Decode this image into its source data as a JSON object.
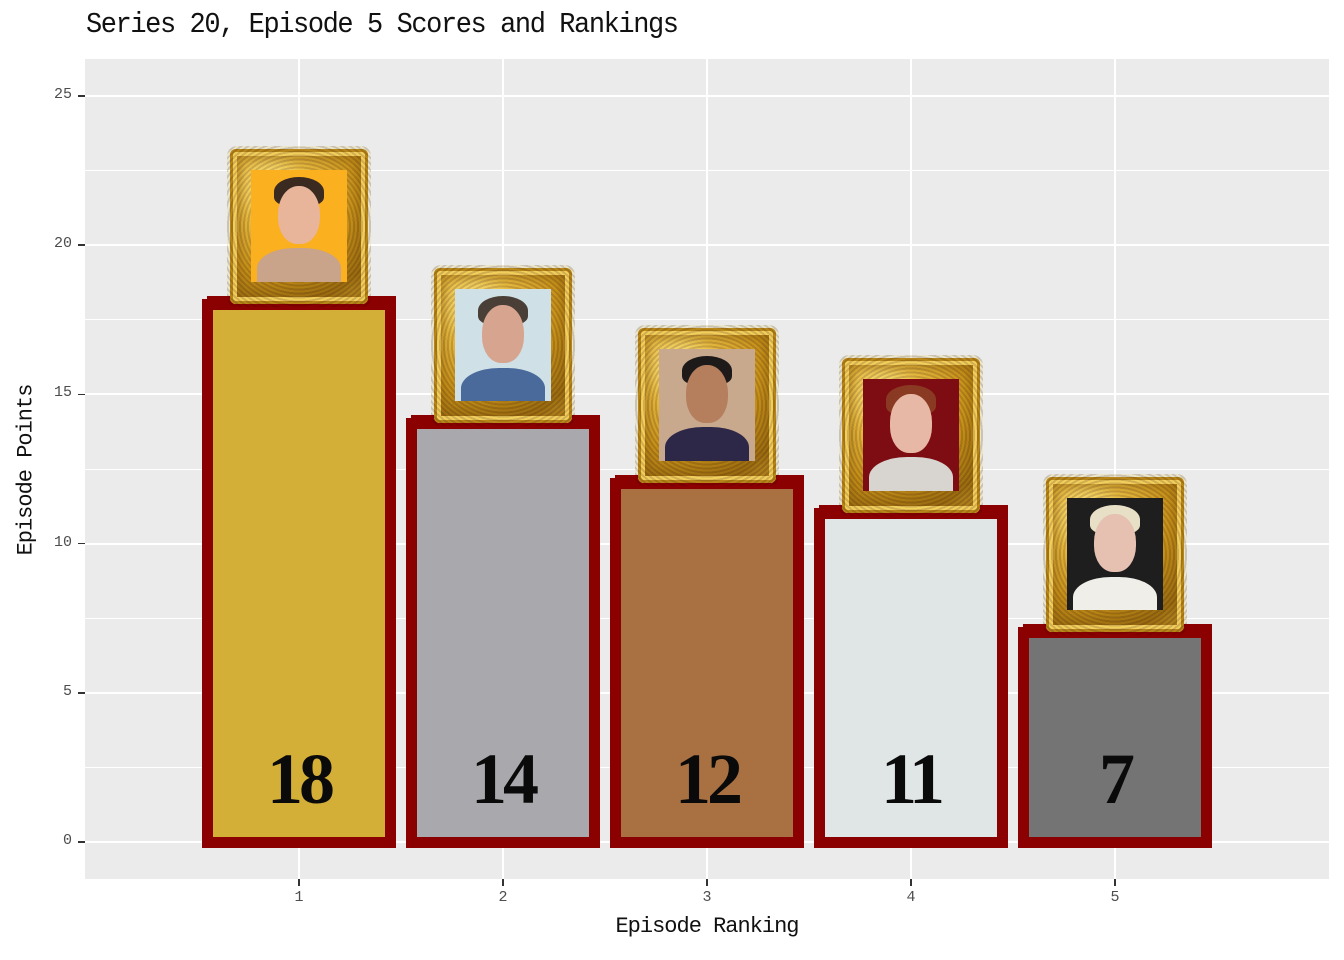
{
  "chart_data": {
    "type": "bar",
    "title": "Series 20, Episode 5 Scores and Rankings",
    "xlabel": "Episode Ranking",
    "ylabel": "Episode Points",
    "categories": [
      "1",
      "2",
      "3",
      "4",
      "5"
    ],
    "values": [
      18,
      14,
      12,
      11,
      7
    ],
    "bar_labels": [
      "18",
      "14",
      "12",
      "11",
      "7"
    ],
    "bar_fill_colors": [
      "#D4AF37",
      "#A9A8AD",
      "#A97142",
      "#E0E5E6",
      "#747474"
    ],
    "bar_outline_color": "#8B0000",
    "ylim": [
      -1.2,
      26.3
    ],
    "yticks": [
      0,
      5,
      10,
      15,
      20,
      25
    ],
    "grid": true,
    "legend": null,
    "annotations": "Each bar topped with a portrait in an ornate gold frame"
  },
  "title": "Series 20, Episode 5 Scores and Rankings",
  "axes": {
    "xlabel": "Episode Ranking",
    "ylabel": "Episode Points",
    "yticks": [
      "0",
      "5",
      "10",
      "15",
      "20",
      "25"
    ],
    "xticks": [
      "1",
      "2",
      "3",
      "4",
      "5"
    ]
  },
  "bars": [
    {
      "rank": "1",
      "value": "18",
      "fill": "#D4AF37",
      "portrait_bg": "#FBB01F",
      "skin": "#E8B49A",
      "hair": "#3a2a20",
      "shirt": "#c9a38a"
    },
    {
      "rank": "2",
      "value": "14",
      "fill": "#A9A8AD",
      "portrait_bg": "#cfe0e6",
      "skin": "#d7a58f",
      "hair": "#4a3f36",
      "shirt": "#4a6a9c"
    },
    {
      "rank": "3",
      "value": "12",
      "fill": "#A97142",
      "portrait_bg": "#c9a98e",
      "skin": "#b57e5d",
      "hair": "#1e1a1a",
      "shirt": "#2d2748"
    },
    {
      "rank": "4",
      "value": "11",
      "fill": "#E0E5E6",
      "portrait_bg": "#7d0d12",
      "skin": "#e7b8a5",
      "hair": "#8a3a22",
      "shirt": "#d8d4cf"
    },
    {
      "rank": "5",
      "value": "7",
      "fill": "#747474",
      "portrait_bg": "#1e1e1e",
      "skin": "#e6c0b0",
      "hair": "#e7dfc6",
      "shirt": "#efeee8"
    }
  ]
}
